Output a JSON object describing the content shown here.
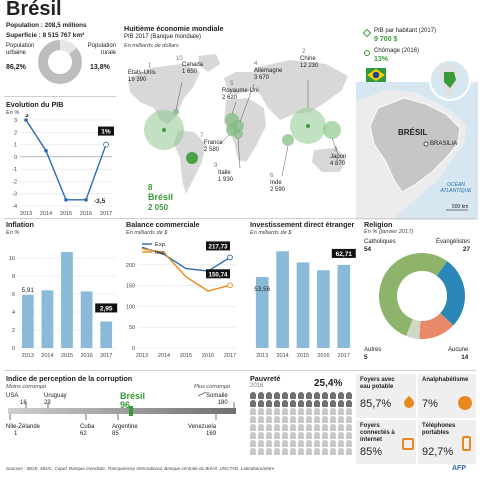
{
  "title": "Brésil",
  "population": {
    "label": "Population : 208,5 millions",
    "superficie": "Superficie : 8 515 767 km²"
  },
  "urban": {
    "label": "Population urbaine",
    "value": "86,2%",
    "pct": 86.2
  },
  "rural": {
    "label": "Population rurale",
    "value": "13,8%",
    "pct": 13.8
  },
  "economy": {
    "title": "Huitième économie mondiale",
    "subtitle": "PIB 2017 (Banque mondiale)",
    "unit": "En milliards de dollars",
    "countries": [
      {
        "rank": "1",
        "name": "Etats-Unis",
        "value": "19 390"
      },
      {
        "rank": "10",
        "name": "Canada",
        "value": "1 650"
      },
      {
        "rank": "5",
        "name": "Royaume-Uni",
        "value": "2 620"
      },
      {
        "rank": "4",
        "name": "Allemagne",
        "value": "3 670"
      },
      {
        "rank": "2",
        "name": "Chine",
        "value": "12 230"
      },
      {
        "rank": "7",
        "name": "France",
        "value": "2 580"
      },
      {
        "rank": "9",
        "name": "Italie",
        "value": "1 930"
      },
      {
        "rank": "6",
        "name": "Inde",
        "value": "2 590"
      },
      {
        "rank": "3",
        "name": "Japon",
        "value": "4 870"
      }
    ],
    "brazil": {
      "rank": "8",
      "name": "Brésil",
      "value": "2 050"
    }
  },
  "pib_hab": {
    "label": "PIB par habitant (2017)",
    "value": "9 700 $"
  },
  "chomage": {
    "label": "Chômage (2016)",
    "value": "13%"
  },
  "map": {
    "country": "BRÉSIL",
    "capital": "BRASILIA",
    "ocean": "OCÉAN ATLANTIQUE",
    "scale": "500 km"
  },
  "pib_chart": {
    "title": "Evolution du PIB",
    "unit": "En %",
    "chart_data": {
      "type": "line",
      "x": [
        "2013",
        "2014",
        "2015",
        "2016",
        "2017"
      ],
      "values": [
        3,
        0.5,
        -3.5,
        -3.5,
        1
      ],
      "ylim": [
        -4,
        3
      ],
      "yticks": [
        "3",
        "2",
        "1",
        "0",
        "-1",
        "-2",
        "-3",
        "-4"
      ],
      "labels": [
        "3",
        "-3,5",
        "1%"
      ]
    }
  },
  "inflation": {
    "title": "Inflation",
    "unit": "En %",
    "chart_data": {
      "type": "bar",
      "categories": [
        "2013",
        "2014",
        "2015",
        "2016",
        "2017"
      ],
      "values": [
        5.91,
        6.41,
        10.67,
        6.29,
        2.95
      ],
      "ylim": [
        0,
        12
      ],
      "yticks": [
        "10",
        "8",
        "6",
        "4",
        "2",
        "0"
      ],
      "labels": [
        "5,91",
        "2,95"
      ]
    }
  },
  "balance": {
    "title": "Balance commerciale",
    "unit": "En milliards de $",
    "legend": [
      "Exp.",
      "Imp."
    ],
    "chart_data": {
      "type": "line",
      "x": [
        "2013",
        "2014",
        "2015",
        "2016",
        "2017"
      ],
      "series": [
        {
          "name": "Exp.",
          "values": [
            242,
            225,
            191,
            185,
            217.73
          ]
        },
        {
          "name": "Imp.",
          "values": [
            239,
            229,
            171,
            137,
            150.74
          ]
        }
      ],
      "ylim": [
        0,
        250
      ],
      "yticks": [
        "200",
        "150",
        "100",
        "50",
        "0"
      ],
      "labels": [
        "217,73",
        "150,74"
      ]
    }
  },
  "ide": {
    "title": "Investissement direct étranger",
    "unit": "En milliards de $",
    "chart_data": {
      "type": "bar",
      "categories": [
        "2013",
        "2014",
        "2015",
        "2016",
        "2017"
      ],
      "values": [
        53.56,
        73,
        64.6,
        58.7,
        62.71
      ],
      "ylim": [
        0,
        80
      ],
      "labels": [
        "53,56",
        "62,71"
      ]
    }
  },
  "religion": {
    "title": "Religion",
    "unit": "En % (janvier 2017)",
    "chart_data": {
      "type": "pie",
      "segments": [
        {
          "name": "Catholiques",
          "value": 54,
          "color": "#8db46a"
        },
        {
          "name": "Évangélistes",
          "value": 27,
          "color": "#2a87b8"
        },
        {
          "name": "Aucune",
          "value": 14,
          "color": "#e8896a"
        },
        {
          "name": "Autres",
          "value": 5,
          "color": "#cfd8c4"
        }
      ]
    }
  },
  "corruption": {
    "title": "Indice de perception de la corruption",
    "less": "Moins corrompu",
    "more": "Plus corrompu",
    "top": [
      {
        "name": "USA",
        "rank": "16"
      },
      {
        "name": "Uruguay",
        "rank": "23"
      },
      {
        "name": "Somalie",
        "rank": "180"
      }
    ],
    "bottom": [
      {
        "name": "Nlle-Zélande",
        "rank": "1"
      },
      {
        "name": "Cuba",
        "rank": "62"
      },
      {
        "name": "Argentine",
        "rank": "85"
      },
      {
        "name": "Venezuela",
        "rank": "169"
      }
    ],
    "brazil": {
      "name": "Brésil",
      "rank": "96"
    }
  },
  "pauvrete": {
    "title": "Pauvreté",
    "year": "2016",
    "value": "25,4%",
    "pct": 25.4
  },
  "indicators": [
    {
      "label": "Foyers avec eau potable",
      "value": "85,7%",
      "icon": "water-drop-icon"
    },
    {
      "label": "Analphabétisme",
      "value": "7%",
      "icon": "book-icon"
    },
    {
      "label": "Foyers connectés à internet",
      "value": "85%",
      "icon": "internet-icon"
    },
    {
      "label": "Téléphones portables",
      "value": "92,7%",
      "icon": "phone-icon"
    }
  ],
  "sources": "Sources : IBGE, MDIC, Copel, Banque mondiale, Transparency International, Banque centrale du Brésil, UNCTAD, Latinobaromètre",
  "credit": "AFP",
  "colors": {
    "green": "#3a9a3a",
    "orange": "#e8891f",
    "blue": "#2a6ab0",
    "grey": "#9a9a9a"
  }
}
